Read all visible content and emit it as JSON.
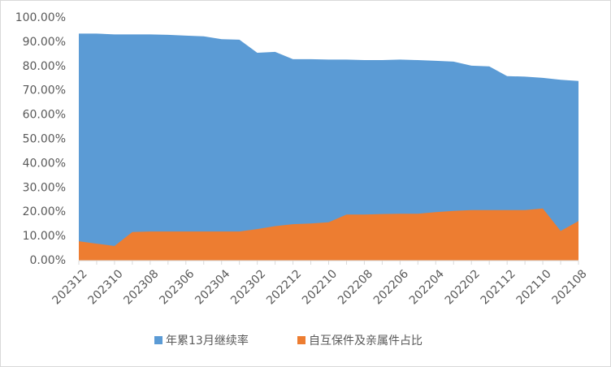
{
  "chart_data": {
    "type": "area",
    "categories": [
      "202312",
      null,
      "202310",
      null,
      "202308",
      null,
      "202306",
      null,
      "202304",
      null,
      "202302",
      null,
      "202212",
      null,
      "202210",
      null,
      "202208",
      null,
      "202206",
      null,
      "202204",
      null,
      "202202",
      null,
      "202112",
      null,
      "202110",
      null,
      "202108"
    ],
    "series": [
      {
        "name": "年累13月继续率",
        "color": "#5b9bd5",
        "values": [
          93.5,
          93.5,
          93.2,
          93.2,
          93.2,
          93.0,
          92.7,
          92.4,
          91.2,
          91.0,
          85.6,
          86.0,
          83.0,
          83.0,
          82.8,
          82.8,
          82.6,
          82.6,
          82.8,
          82.6,
          82.3,
          82.0,
          80.3,
          80.0,
          76.0,
          75.8,
          75.3,
          74.5,
          74.0
        ]
      },
      {
        "name": "自互保件及亲属件占比",
        "color": "#ed7d31",
        "values": [
          8.0,
          7.0,
          6.0,
          11.8,
          12.0,
          12.0,
          12.0,
          12.0,
          12.0,
          12.0,
          13.0,
          14.2,
          15.0,
          15.3,
          15.8,
          19.0,
          19.0,
          19.2,
          19.3,
          19.3,
          20.0,
          20.5,
          20.8,
          20.8,
          20.8,
          20.8,
          21.5,
          12.2,
          16.3
        ]
      }
    ],
    "ylim": [
      0,
      100
    ],
    "yticks": [
      {
        "value": 0,
        "label": "0.00%"
      },
      {
        "value": 10,
        "label": "10.00%"
      },
      {
        "value": 20,
        "label": "20.00%"
      },
      {
        "value": 30,
        "label": "30.00%"
      },
      {
        "value": 40,
        "label": "40.00%"
      },
      {
        "value": 50,
        "label": "50.00%"
      },
      {
        "value": 60,
        "label": "60.00%"
      },
      {
        "value": 70,
        "label": "70.00%"
      },
      {
        "value": 80,
        "label": "80.00%"
      },
      {
        "value": 90,
        "label": "90.00%"
      },
      {
        "value": 100,
        "label": "100.00%"
      }
    ],
    "grid": false,
    "legend": "bottom"
  }
}
